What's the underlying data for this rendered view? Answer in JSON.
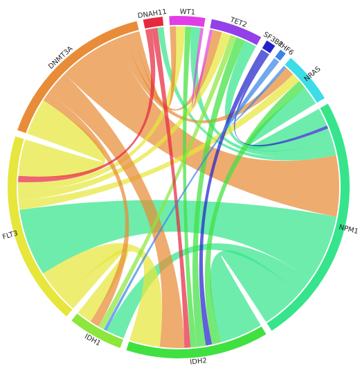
{
  "chart_data": {
    "type": "chord",
    "nodes": [
      {
        "name": "DNAH11",
        "color": "#e6283e"
      },
      {
        "name": "WT1",
        "color": "#e23ee6"
      },
      {
        "name": "TET2",
        "color": "#9440e8"
      },
      {
        "name": "SF3B1",
        "color": "#2222cc"
      },
      {
        "name": "PHF6",
        "color": "#3a86e6"
      },
      {
        "name": "NRAS",
        "color": "#3cdde6"
      },
      {
        "name": "NPM1",
        "color": "#36e48c"
      },
      {
        "name": "IDH2",
        "color": "#40e040"
      },
      {
        "name": "IDH1",
        "color": "#8ce63c"
      },
      {
        "name": "FLT3",
        "color": "#e6e63c"
      },
      {
        "name": "DNMT3A",
        "color": "#e88c38"
      }
    ],
    "links": [
      {
        "source": 10,
        "target": 6,
        "value": 20
      },
      {
        "source": 6,
        "target": 9,
        "value": 22
      },
      {
        "source": 6,
        "target": 7,
        "value": 14
      },
      {
        "source": 6,
        "target": 8,
        "value": 6
      },
      {
        "source": 6,
        "target": 5,
        "value": 6
      },
      {
        "source": 6,
        "target": 2,
        "value": 4
      },
      {
        "source": 6,
        "target": 1,
        "value": 3
      },
      {
        "source": 6,
        "target": 0,
        "value": 2
      },
      {
        "source": 9,
        "target": 7,
        "value": 10
      },
      {
        "source": 9,
        "target": 10,
        "value": 12
      },
      {
        "source": 9,
        "target": 8,
        "value": 5
      },
      {
        "source": 9,
        "target": 1,
        "value": 3
      },
      {
        "source": 9,
        "target": 2,
        "value": 3
      },
      {
        "source": 9,
        "target": 5,
        "value": 3
      },
      {
        "source": 10,
        "target": 7,
        "value": 8
      },
      {
        "source": 10,
        "target": 8,
        "value": 3
      },
      {
        "source": 10,
        "target": 2,
        "value": 3
      },
      {
        "source": 10,
        "target": 1,
        "value": 2
      },
      {
        "source": 10,
        "target": 5,
        "value": 3
      },
      {
        "source": 7,
        "target": 2,
        "value": 3
      },
      {
        "source": 7,
        "target": 1,
        "value": 2
      },
      {
        "source": 7,
        "target": 5,
        "value": 3
      },
      {
        "source": 8,
        "target": 2,
        "value": 2
      },
      {
        "source": 0,
        "target": 7,
        "value": 2
      },
      {
        "source": 0,
        "target": 9,
        "value": 2
      },
      {
        "source": 1,
        "target": 2,
        "value": 1
      },
      {
        "source": 3,
        "target": 7,
        "value": 2
      },
      {
        "source": 3,
        "target": 6,
        "value": 1
      },
      {
        "source": 4,
        "target": 5,
        "value": 1
      },
      {
        "source": 4,
        "target": 8,
        "value": 1
      }
    ]
  }
}
